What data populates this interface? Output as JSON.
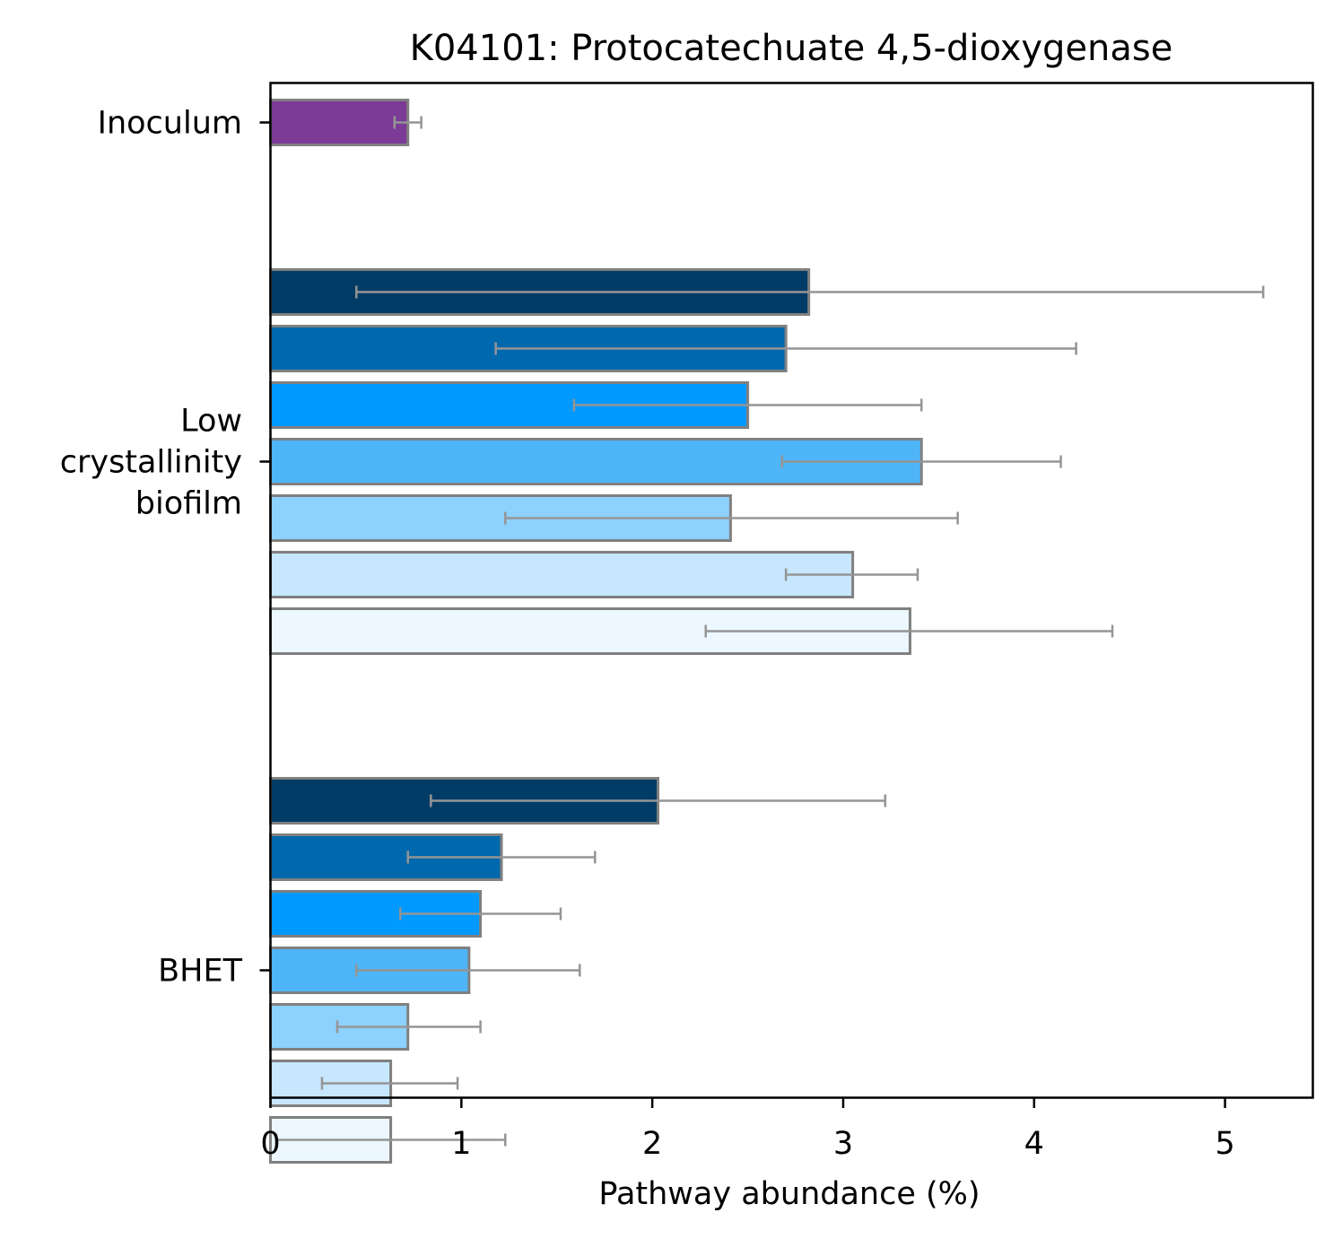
{
  "chart_data": {
    "type": "bar",
    "orientation": "horizontal",
    "title": "K04101: Protocatechuate 4,5-dioxygenase",
    "xlabel": "Pathway abundance (%)",
    "ylabel": "",
    "xlim": [
      0,
      5.46
    ],
    "xticks": [
      0,
      1,
      2,
      3,
      4,
      5
    ],
    "xtick_labels": [
      "0",
      "1",
      "2",
      "3",
      "4",
      "5"
    ],
    "grid": false,
    "legend": "none",
    "bar_edge_color": "#808080",
    "errorbar_color": "#959595",
    "groups": [
      {
        "label": [
          "Inoculum"
        ],
        "bars": [
          {
            "value": 0.72,
            "err_low": 0.65,
            "err_high": 0.79,
            "color": "#7b3b96"
          }
        ]
      },
      {
        "label": [
          "Low",
          "crystallinity",
          "biofilm"
        ],
        "bars": [
          {
            "value": 2.82,
            "err_low": 0.45,
            "err_high": 5.2,
            "color": "#003c66"
          },
          {
            "value": 2.7,
            "err_low": 1.18,
            "err_high": 4.22,
            "color": "#0068ac"
          },
          {
            "value": 2.5,
            "err_low": 1.59,
            "err_high": 3.41,
            "color": "#0099ff"
          },
          {
            "value": 3.41,
            "err_low": 2.68,
            "err_high": 4.14,
            "color": "#4db5f8"
          },
          {
            "value": 2.41,
            "err_low": 1.23,
            "err_high": 3.6,
            "color": "#8dd1fe"
          },
          {
            "value": 3.05,
            "err_low": 2.7,
            "err_high": 3.39,
            "color": "#c6e7fe"
          },
          {
            "value": 3.35,
            "err_low": 2.28,
            "err_high": 4.41,
            "color": "#ecf7ff"
          }
        ]
      },
      {
        "label": [
          "BHET"
        ],
        "bars": [
          {
            "value": 2.03,
            "err_low": 0.84,
            "err_high": 3.22,
            "color": "#003c66"
          },
          {
            "value": 1.21,
            "err_low": 0.72,
            "err_high": 1.7,
            "color": "#0068ac"
          },
          {
            "value": 1.1,
            "err_low": 0.68,
            "err_high": 1.52,
            "color": "#0099ff"
          },
          {
            "value": 1.04,
            "err_low": 0.45,
            "err_high": 1.62,
            "color": "#4db5f8"
          },
          {
            "value": 0.72,
            "err_low": 0.35,
            "err_high": 1.1,
            "color": "#8dd1fe"
          },
          {
            "value": 0.63,
            "err_low": 0.27,
            "err_high": 0.98,
            "color": "#c6e7fe"
          },
          {
            "value": 0.63,
            "err_low": 0.03,
            "err_high": 1.23,
            "color": "#ecf7ff"
          }
        ]
      }
    ]
  }
}
